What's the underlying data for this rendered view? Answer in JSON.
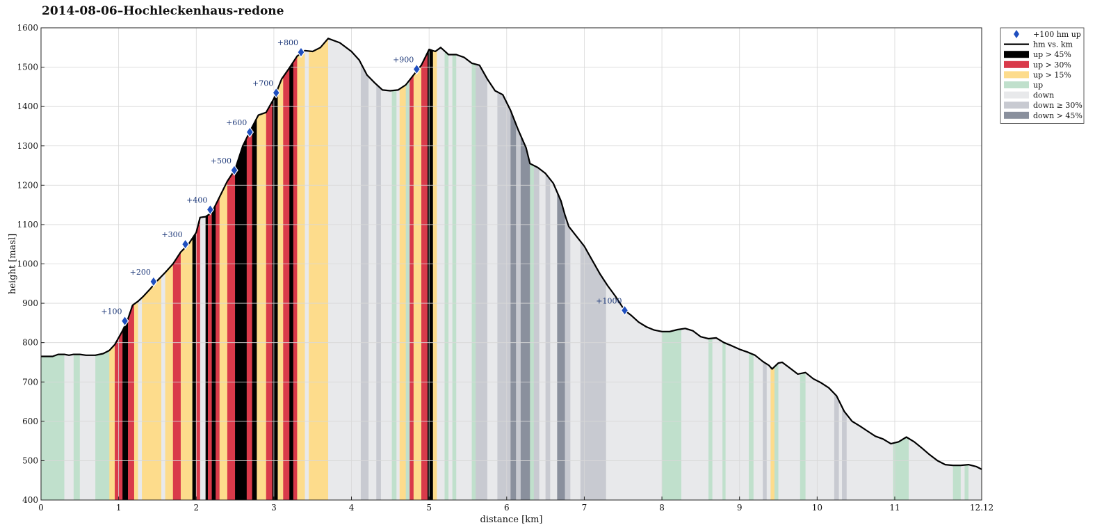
{
  "title": "2014-08-06–Hochleckenhaus-redone",
  "chart_data": {
    "type": "area",
    "title": "2014-08-06–Hochleckenhaus-redone",
    "xlabel": "distance [km]",
    "ylabel": "height [masl]",
    "xlim": [
      0,
      12.12
    ],
    "ylim": [
      400,
      1600
    ],
    "x_ticks": [
      "0",
      "1",
      "2",
      "3",
      "4",
      "5",
      "6",
      "7",
      "8",
      "9",
      "10",
      "11",
      "12.12"
    ],
    "x_tick_values": [
      0,
      1,
      2,
      3,
      4,
      5,
      6,
      7,
      8,
      9,
      10,
      11,
      12.12
    ],
    "y_ticks": [
      "400",
      "500",
      "600",
      "700",
      "800",
      "900",
      "1000",
      "1100",
      "1200",
      "1300",
      "1400",
      "1500",
      "1600"
    ],
    "y_tick_values": [
      400,
      500,
      600,
      700,
      800,
      900,
      1000,
      1100,
      1200,
      1300,
      1400,
      1500,
      1600
    ],
    "grid": true,
    "legend_position": "outside-top-right",
    "legend": [
      {
        "label": "+100 hm up",
        "kind": "marker",
        "color": "#1f4fbf"
      },
      {
        "label": "hm vs. km",
        "kind": "line",
        "color": "#000000"
      },
      {
        "label": "up > 45%",
        "kind": "patch",
        "color": "#000000"
      },
      {
        "label": "up > 30%",
        "kind": "patch",
        "color": "#d93a4a"
      },
      {
        "label": "up > 15%",
        "kind": "patch",
        "color": "#fddc8c"
      },
      {
        "label": "up",
        "kind": "patch",
        "color": "#c0e0cc"
      },
      {
        "label": "down",
        "kind": "patch",
        "color": "#e8e9eb"
      },
      {
        "label": "down ≥ 30%",
        "kind": "patch",
        "color": "#c8cad1"
      },
      {
        "label": "down > 45%",
        "kind": "patch",
        "color": "#8a909d"
      }
    ],
    "profile": [
      [
        0.0,
        765
      ],
      [
        0.15,
        765
      ],
      [
        0.22,
        770
      ],
      [
        0.3,
        770
      ],
      [
        0.36,
        768
      ],
      [
        0.42,
        770
      ],
      [
        0.5,
        770
      ],
      [
        0.58,
        768
      ],
      [
        0.7,
        768
      ],
      [
        0.8,
        772
      ],
      [
        0.88,
        780
      ],
      [
        0.95,
        795
      ],
      [
        1.05,
        830
      ],
      [
        1.12,
        860
      ],
      [
        1.18,
        895
      ],
      [
        1.25,
        905
      ],
      [
        1.32,
        918
      ],
      [
        1.4,
        935
      ],
      [
        1.5,
        958
      ],
      [
        1.6,
        978
      ],
      [
        1.7,
        1000
      ],
      [
        1.8,
        1030
      ],
      [
        1.9,
        1050
      ],
      [
        2.0,
        1080
      ],
      [
        2.05,
        1118
      ],
      [
        2.12,
        1120
      ],
      [
        2.2,
        1130
      ],
      [
        2.3,
        1170
      ],
      [
        2.4,
        1210
      ],
      [
        2.5,
        1240
      ],
      [
        2.6,
        1300
      ],
      [
        2.7,
        1340
      ],
      [
        2.8,
        1378
      ],
      [
        2.9,
        1385
      ],
      [
        3.0,
        1420
      ],
      [
        3.1,
        1470
      ],
      [
        3.2,
        1498
      ],
      [
        3.3,
        1528
      ],
      [
        3.4,
        1542
      ],
      [
        3.5,
        1540
      ],
      [
        3.6,
        1550
      ],
      [
        3.7,
        1573
      ],
      [
        3.85,
        1562
      ],
      [
        4.0,
        1540
      ],
      [
        4.1,
        1518
      ],
      [
        4.2,
        1480
      ],
      [
        4.3,
        1460
      ],
      [
        4.4,
        1442
      ],
      [
        4.5,
        1440
      ],
      [
        4.6,
        1442
      ],
      [
        4.7,
        1455
      ],
      [
        4.8,
        1480
      ],
      [
        4.9,
        1505
      ],
      [
        5.0,
        1545
      ],
      [
        5.08,
        1540
      ],
      [
        5.15,
        1550
      ],
      [
        5.25,
        1532
      ],
      [
        5.35,
        1532
      ],
      [
        5.45,
        1525
      ],
      [
        5.55,
        1510
      ],
      [
        5.65,
        1505
      ],
      [
        5.75,
        1470
      ],
      [
        5.85,
        1440
      ],
      [
        5.95,
        1430
      ],
      [
        6.05,
        1390
      ],
      [
        6.15,
        1340
      ],
      [
        6.25,
        1295
      ],
      [
        6.3,
        1255
      ],
      [
        6.4,
        1245
      ],
      [
        6.5,
        1230
      ],
      [
        6.6,
        1205
      ],
      [
        6.7,
        1160
      ],
      [
        6.75,
        1125
      ],
      [
        6.8,
        1095
      ],
      [
        6.9,
        1070
      ],
      [
        7.0,
        1045
      ],
      [
        7.1,
        1010
      ],
      [
        7.2,
        975
      ],
      [
        7.3,
        945
      ],
      [
        7.4,
        918
      ],
      [
        7.52,
        882
      ],
      [
        7.6,
        870
      ],
      [
        7.7,
        852
      ],
      [
        7.8,
        840
      ],
      [
        7.9,
        832
      ],
      [
        8.0,
        828
      ],
      [
        8.1,
        828
      ],
      [
        8.2,
        833
      ],
      [
        8.3,
        836
      ],
      [
        8.4,
        830
      ],
      [
        8.5,
        815
      ],
      [
        8.6,
        810
      ],
      [
        8.7,
        812
      ],
      [
        8.8,
        800
      ],
      [
        8.9,
        792
      ],
      [
        9.0,
        783
      ],
      [
        9.1,
        776
      ],
      [
        9.2,
        768
      ],
      [
        9.3,
        752
      ],
      [
        9.38,
        742
      ],
      [
        9.42,
        733
      ],
      [
        9.5,
        748
      ],
      [
        9.55,
        750
      ],
      [
        9.65,
        735
      ],
      [
        9.75,
        720
      ],
      [
        9.85,
        724
      ],
      [
        9.95,
        708
      ],
      [
        10.05,
        698
      ],
      [
        10.15,
        685
      ],
      [
        10.25,
        665
      ],
      [
        10.35,
        625
      ],
      [
        10.45,
        600
      ],
      [
        10.55,
        588
      ],
      [
        10.65,
        575
      ],
      [
        10.75,
        562
      ],
      [
        10.85,
        555
      ],
      [
        10.95,
        543
      ],
      [
        11.05,
        548
      ],
      [
        11.15,
        560
      ],
      [
        11.25,
        548
      ],
      [
        11.35,
        532
      ],
      [
        11.45,
        515
      ],
      [
        11.55,
        500
      ],
      [
        11.65,
        490
      ],
      [
        11.75,
        488
      ],
      [
        11.85,
        488
      ],
      [
        11.95,
        490
      ],
      [
        12.05,
        485
      ],
      [
        12.12,
        478
      ]
    ],
    "bands": [
      [
        0.0,
        0.06,
        "up"
      ],
      [
        0.06,
        0.3,
        "up"
      ],
      [
        0.3,
        0.42,
        "down"
      ],
      [
        0.42,
        0.5,
        "up"
      ],
      [
        0.5,
        0.7,
        "down"
      ],
      [
        0.7,
        0.88,
        "up"
      ],
      [
        0.88,
        0.95,
        "up15"
      ],
      [
        0.95,
        1.05,
        "up30"
      ],
      [
        1.05,
        1.12,
        "up45"
      ],
      [
        1.12,
        1.2,
        "up30"
      ],
      [
        1.2,
        1.25,
        "up15"
      ],
      [
        1.25,
        1.3,
        "down"
      ],
      [
        1.3,
        1.55,
        "up15"
      ],
      [
        1.55,
        1.6,
        "down"
      ],
      [
        1.6,
        1.7,
        "up15"
      ],
      [
        1.7,
        1.8,
        "up30"
      ],
      [
        1.8,
        1.95,
        "up15"
      ],
      [
        1.95,
        2.0,
        "up45"
      ],
      [
        2.0,
        2.05,
        "up30"
      ],
      [
        2.05,
        2.12,
        "down"
      ],
      [
        2.12,
        2.15,
        "up45"
      ],
      [
        2.15,
        2.2,
        "up30"
      ],
      [
        2.2,
        2.25,
        "up45"
      ],
      [
        2.25,
        2.3,
        "up30"
      ],
      [
        2.3,
        2.4,
        "up15"
      ],
      [
        2.4,
        2.5,
        "up30"
      ],
      [
        2.5,
        2.65,
        "up45"
      ],
      [
        2.65,
        2.72,
        "up30"
      ],
      [
        2.72,
        2.78,
        "up45"
      ],
      [
        2.78,
        2.9,
        "up15"
      ],
      [
        2.9,
        2.98,
        "up30"
      ],
      [
        2.98,
        3.05,
        "up45"
      ],
      [
        3.05,
        3.12,
        "up15"
      ],
      [
        3.12,
        3.2,
        "up30"
      ],
      [
        3.2,
        3.25,
        "up45"
      ],
      [
        3.25,
        3.3,
        "up30"
      ],
      [
        3.3,
        3.4,
        "up15"
      ],
      [
        3.4,
        3.45,
        "down"
      ],
      [
        3.45,
        3.55,
        "up15"
      ],
      [
        3.55,
        3.7,
        "up15"
      ],
      [
        3.7,
        4.12,
        "down"
      ],
      [
        4.12,
        4.22,
        "down30"
      ],
      [
        4.22,
        4.32,
        "down"
      ],
      [
        4.32,
        4.38,
        "down30"
      ],
      [
        4.38,
        4.52,
        "down"
      ],
      [
        4.52,
        4.58,
        "up"
      ],
      [
        4.58,
        4.62,
        "down"
      ],
      [
        4.62,
        4.7,
        "up15"
      ],
      [
        4.7,
        4.75,
        "up"
      ],
      [
        4.75,
        4.8,
        "up30"
      ],
      [
        4.8,
        4.9,
        "up15"
      ],
      [
        4.9,
        4.98,
        "up30"
      ],
      [
        4.98,
        5.05,
        "up45"
      ],
      [
        5.05,
        5.1,
        "up15"
      ],
      [
        5.1,
        5.2,
        "down"
      ],
      [
        5.2,
        5.25,
        "up"
      ],
      [
        5.25,
        5.3,
        "down"
      ],
      [
        5.3,
        5.35,
        "up"
      ],
      [
        5.35,
        5.55,
        "down"
      ],
      [
        5.55,
        5.6,
        "up"
      ],
      [
        5.6,
        5.75,
        "down30"
      ],
      [
        5.75,
        5.88,
        "down"
      ],
      [
        5.88,
        5.95,
        "down30"
      ],
      [
        5.95,
        6.05,
        "down30"
      ],
      [
        6.05,
        6.12,
        "down45"
      ],
      [
        6.12,
        6.18,
        "down30"
      ],
      [
        6.18,
        6.3,
        "down45"
      ],
      [
        6.3,
        6.35,
        "up"
      ],
      [
        6.35,
        6.42,
        "down30"
      ],
      [
        6.42,
        6.5,
        "down"
      ],
      [
        6.5,
        6.56,
        "down30"
      ],
      [
        6.56,
        6.65,
        "down"
      ],
      [
        6.65,
        6.75,
        "down45"
      ],
      [
        6.75,
        6.82,
        "down30"
      ],
      [
        6.82,
        6.95,
        "down"
      ],
      [
        6.95,
        7.05,
        "down30"
      ],
      [
        7.05,
        7.28,
        "down30"
      ],
      [
        7.28,
        8.0,
        "down"
      ],
      [
        8.0,
        8.25,
        "up"
      ],
      [
        8.25,
        8.6,
        "down"
      ],
      [
        8.6,
        8.65,
        "up"
      ],
      [
        8.65,
        8.78,
        "down"
      ],
      [
        8.78,
        8.82,
        "up"
      ],
      [
        8.82,
        9.12,
        "down"
      ],
      [
        9.12,
        9.18,
        "up"
      ],
      [
        9.18,
        9.3,
        "down"
      ],
      [
        9.3,
        9.35,
        "down30"
      ],
      [
        9.35,
        9.4,
        "down"
      ],
      [
        9.4,
        9.45,
        "up15"
      ],
      [
        9.45,
        9.5,
        "up"
      ],
      [
        9.5,
        9.78,
        "down"
      ],
      [
        9.78,
        9.85,
        "up"
      ],
      [
        9.85,
        10.22,
        "down"
      ],
      [
        10.22,
        10.28,
        "down30"
      ],
      [
        10.28,
        10.32,
        "down"
      ],
      [
        10.32,
        10.38,
        "down30"
      ],
      [
        10.38,
        10.98,
        "down"
      ],
      [
        10.98,
        11.18,
        "up"
      ],
      [
        11.18,
        11.75,
        "down"
      ],
      [
        11.75,
        11.85,
        "up"
      ],
      [
        11.85,
        11.9,
        "down"
      ],
      [
        11.9,
        11.95,
        "up"
      ],
      [
        11.95,
        12.12,
        "down"
      ]
    ],
    "markers": [
      {
        "label": "+100",
        "x": 1.08,
        "y": 855
      },
      {
        "label": "+200",
        "x": 1.45,
        "y": 955
      },
      {
        "label": "+300",
        "x": 1.86,
        "y": 1050
      },
      {
        "label": "+400",
        "x": 2.18,
        "y": 1138
      },
      {
        "label": "+500",
        "x": 2.49,
        "y": 1238
      },
      {
        "label": "+600",
        "x": 2.69,
        "y": 1335
      },
      {
        "label": "+700",
        "x": 3.03,
        "y": 1435
      },
      {
        "label": "+800",
        "x": 3.35,
        "y": 1538
      },
      {
        "label": "+900",
        "x": 4.84,
        "y": 1495
      },
      {
        "label": "+1000",
        "x": 7.52,
        "y": 882
      }
    ]
  }
}
